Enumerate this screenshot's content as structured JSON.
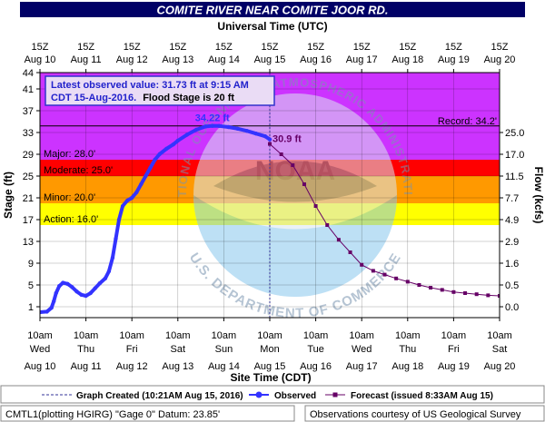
{
  "chart_data": {
    "type": "line",
    "title": "COMITE RIVER NEAR COMITE JOOR RD.",
    "top_axis_title": "Universal Time (UTC)",
    "top_ticks": [
      [
        "15Z",
        "Aug 10"
      ],
      [
        "15Z",
        "Aug 11"
      ],
      [
        "15Z",
        "Aug 12"
      ],
      [
        "15Z",
        "Aug 13"
      ],
      [
        "15Z",
        "Aug 14"
      ],
      [
        "15Z",
        "Aug 15"
      ],
      [
        "15Z",
        "Aug 16"
      ],
      [
        "15Z",
        "Aug 17"
      ],
      [
        "15Z",
        "Aug 18"
      ],
      [
        "15Z",
        "Aug 19"
      ],
      [
        "15Z",
        "Aug 20"
      ]
    ],
    "xlabel": "Site Time (CDT)",
    "bottom_ticks": [
      [
        "10am",
        "Wed",
        "Aug 10"
      ],
      [
        "10am",
        "Thu",
        "Aug 11"
      ],
      [
        "10am",
        "Fri",
        "Aug 12"
      ],
      [
        "10am",
        "Sat",
        "Aug 13"
      ],
      [
        "10am",
        "Sun",
        "Aug 14"
      ],
      [
        "10am",
        "Mon",
        "Aug 15"
      ],
      [
        "10am",
        "Tue",
        "Aug 16"
      ],
      [
        "10am",
        "Wed",
        "Aug 17"
      ],
      [
        "10am",
        "Thu",
        "Aug 18"
      ],
      [
        "10am",
        "Fri",
        "Aug 19"
      ],
      [
        "10am",
        "Sat",
        "Aug 20"
      ]
    ],
    "x_unit": "days since Aug 10 10am CDT",
    "xlim": [
      0,
      10
    ],
    "ylabel": "Stage (ft)",
    "ylim": [
      -1,
      44
    ],
    "yticks": [
      1,
      5,
      9,
      13,
      17,
      21,
      25,
      29,
      33,
      37,
      41,
      44
    ],
    "y2label": "Flow (kcfs)",
    "y2ticks": [
      {
        "stage": 1,
        "label": "0.0"
      },
      {
        "stage": 5,
        "label": "0.5"
      },
      {
        "stage": 9,
        "label": "1.6"
      },
      {
        "stage": 13,
        "label": "2.9"
      },
      {
        "stage": 17,
        "label": "4.9"
      },
      {
        "stage": 21,
        "label": "7.7"
      },
      {
        "stage": 25,
        "label": "11.5"
      },
      {
        "stage": 29,
        "label": "17.0"
      },
      {
        "stage": 33,
        "label": "25.0"
      }
    ],
    "flood_categories": [
      {
        "name": "Action",
        "label": "Action: 16.0'",
        "from": 16.0,
        "to": 20.0,
        "color": "#ffff00"
      },
      {
        "name": "Minor",
        "label": "Minor: 20.0'",
        "from": 20.0,
        "to": 25.0,
        "color": "#ff9900"
      },
      {
        "name": "Moderate",
        "label": "Moderate: 25.0'",
        "from": 25.0,
        "to": 28.0,
        "color": "#ff0000"
      },
      {
        "name": "Major",
        "label": "Major: 28.0'",
        "from": 28.0,
        "to": 44.0,
        "color": "#cc33ff"
      }
    ],
    "record": {
      "label": "Record: 34.2'",
      "value": 34.2
    },
    "info_box": [
      "Latest observed value: 31.73 ft at 9:15 AM",
      "CDT 15-Aug-2016.",
      "Flood Stage is 20 ft"
    ],
    "observed": {
      "name": "Observed",
      "color": "#3333ff",
      "peak_label": "34.22 ft",
      "peak": {
        "x": 3.75,
        "y": 34.22
      },
      "points": [
        [
          0.0,
          0.0
        ],
        [
          0.15,
          0.1
        ],
        [
          0.25,
          0.8
        ],
        [
          0.3,
          2.0
        ],
        [
          0.35,
          3.5
        ],
        [
          0.42,
          4.8
        ],
        [
          0.5,
          5.4
        ],
        [
          0.6,
          5.2
        ],
        [
          0.7,
          4.6
        ],
        [
          0.8,
          3.8
        ],
        [
          0.9,
          3.2
        ],
        [
          1.0,
          3.0
        ],
        [
          1.1,
          3.5
        ],
        [
          1.2,
          4.4
        ],
        [
          1.3,
          5.3
        ],
        [
          1.42,
          6.2
        ],
        [
          1.5,
          7.5
        ],
        [
          1.58,
          10.0
        ],
        [
          1.65,
          13.5
        ],
        [
          1.72,
          17.0
        ],
        [
          1.8,
          19.5
        ],
        [
          1.9,
          20.5
        ],
        [
          2.0,
          21.0
        ],
        [
          2.1,
          22.0
        ],
        [
          2.2,
          23.5
        ],
        [
          2.3,
          25.0
        ],
        [
          2.4,
          26.5
        ],
        [
          2.5,
          28.0
        ],
        [
          2.6,
          29.0
        ],
        [
          2.75,
          30.0
        ],
        [
          2.9,
          30.8
        ],
        [
          3.0,
          31.5
        ],
        [
          3.2,
          32.6
        ],
        [
          3.4,
          33.5
        ],
        [
          3.6,
          34.1
        ],
        [
          3.75,
          34.22
        ],
        [
          3.9,
          34.2
        ],
        [
          4.1,
          34.0
        ],
        [
          4.3,
          33.7
        ],
        [
          4.5,
          33.3
        ],
        [
          4.7,
          32.8
        ],
        [
          4.9,
          32.3
        ],
        [
          5.0,
          31.73
        ]
      ]
    },
    "forecast": {
      "name": "Forecast (issued 8:33AM Aug 15)",
      "color": "#660066",
      "start_label": "30.9 ft",
      "points": [
        [
          5.0,
          30.9
        ],
        [
          5.25,
          29.0
        ],
        [
          5.5,
          27.0
        ],
        [
          5.75,
          23.5
        ],
        [
          6.0,
          19.5
        ],
        [
          6.25,
          16.0
        ],
        [
          6.5,
          13.3
        ],
        [
          6.75,
          11.0
        ],
        [
          7.0,
          8.7
        ],
        [
          7.25,
          7.6
        ],
        [
          7.5,
          6.9
        ],
        [
          7.75,
          6.2
        ],
        [
          8.0,
          5.6
        ],
        [
          8.25,
          5.0
        ],
        [
          8.5,
          4.5
        ],
        [
          8.75,
          4.1
        ],
        [
          9.0,
          3.7
        ],
        [
          9.25,
          3.5
        ],
        [
          9.5,
          3.3
        ],
        [
          9.75,
          3.1
        ],
        [
          10.0,
          3.0
        ]
      ]
    },
    "graph_created": {
      "x": 5.0,
      "label": "Graph Created (10:21AM Aug 15, 2016)"
    },
    "footer_left": "CMTL1(plotting HGIRG) \"Gage 0\" Datum: 23.85'",
    "footer_right": "Observations courtesy of US Geological Survey",
    "watermark": [
      "NATIONAL OCEANIC AND ATMOSPHERIC ADMINISTRATION",
      "U.S. DEPARTMENT OF COMMERCE",
      "NOAA"
    ],
    "grid": true
  }
}
